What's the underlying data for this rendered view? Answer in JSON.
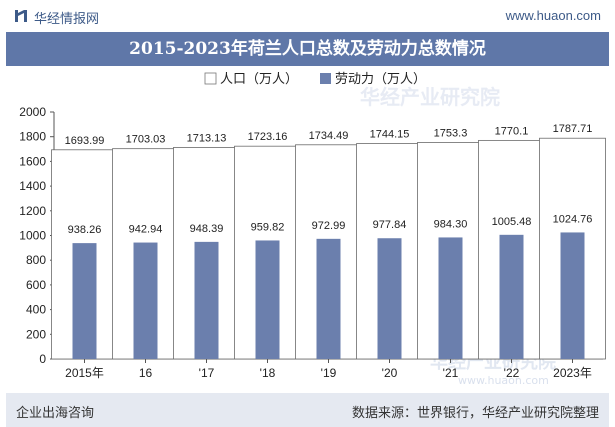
{
  "header": {
    "brand": "华经情报网",
    "website": "www.huaon.com"
  },
  "footer": {
    "left": "企业出海咨询",
    "right": "数据来源：世界银行，华经产业研究院整理"
  },
  "watermark": [
    "华经产业研究院",
    "www.huaon.com"
  ],
  "colors": {
    "population": "#ffffff",
    "labor": "#6b7fad",
    "title_bg": "#5f77a8",
    "footer_bg": "#e5e9f1"
  },
  "chart_data": {
    "type": "bar",
    "title": "2015-2023年荷兰人口总数及劳动力总数情况",
    "categories": [
      "2015年",
      "16",
      "'17",
      "'18",
      "'19",
      "'20",
      "'21",
      "'22",
      "2023年"
    ],
    "series": [
      {
        "name": "人口（万人）",
        "values": [
          1693.99,
          1703.03,
          1713.13,
          1723.16,
          1734.49,
          1744.15,
          1753.3,
          1770.1,
          1787.71
        ],
        "labels": [
          "1693.99",
          "1703.03",
          "1713.13",
          "1723.16",
          "1734.49",
          "1744.15",
          "1753.3",
          "1770.1",
          "1787.71"
        ]
      },
      {
        "name": "劳动力（万人）",
        "values": [
          938.26,
          942.94,
          948.39,
          959.82,
          972.99,
          977.84,
          984.3,
          1005.48,
          1024.76
        ],
        "labels": [
          "938.26",
          "942.94",
          "948.39",
          "959.82",
          "972.99",
          "977.84",
          "984.30",
          "1005.48",
          "1024.76"
        ]
      }
    ],
    "ylim": [
      0,
      2000
    ],
    "yticks": [
      0,
      200,
      400,
      600,
      800,
      1000,
      1200,
      1400,
      1600,
      1800,
      2000
    ],
    "xlabel": "",
    "ylabel": "",
    "legend": "top-center",
    "grid": false
  }
}
